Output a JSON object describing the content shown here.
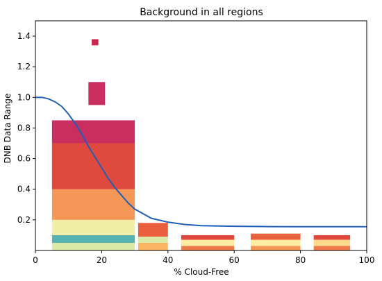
{
  "chart_data": {
    "type": "heatmap",
    "title": "Background in all regions",
    "xlabel": "% Cloud-Free",
    "ylabel": "DNB Data Range",
    "xlim": [
      0,
      100
    ],
    "ylim": [
      0,
      1.5
    ],
    "x_ticks": [
      0,
      20,
      40,
      60,
      80,
      100
    ],
    "y_ticks": [
      0.2,
      0.4,
      0.6,
      0.8,
      1.0,
      1.2,
      1.4
    ],
    "x_tick_labels": [
      "0",
      "20",
      "40",
      "60",
      "80",
      "100"
    ],
    "y_tick_labels": [
      "0.2",
      "0.4",
      "0.6",
      "0.8",
      "1.0",
      "1.2",
      "1.4"
    ],
    "grid": false,
    "colormap": [
      "#ffe6f5",
      "#c21a4e",
      "#e8553a",
      "#fbb563",
      "#fff2a8",
      "#b6e0a5",
      "#2d9fb6"
    ],
    "clusters": [
      {
        "x_range": [
          5,
          30
        ],
        "density_bins": [
          {
            "y_range": [
              0.0,
              0.05
            ],
            "level": 0.75
          },
          {
            "y_range": [
              0.05,
              0.1
            ],
            "level": 0.95
          },
          {
            "y_range": [
              0.1,
              0.2
            ],
            "level": 0.7
          },
          {
            "y_range": [
              0.2,
              0.4
            ],
            "level": 0.45
          },
          {
            "y_range": [
              0.4,
              0.7
            ],
            "level": 0.3
          },
          {
            "y_range": [
              0.7,
              0.85
            ],
            "level": 0.15
          }
        ]
      },
      {
        "x_range": [
          31,
          40
        ],
        "density_bins": [
          {
            "y_range": [
              0.0,
              0.05
            ],
            "level": 0.5
          },
          {
            "y_range": [
              0.05,
              0.09
            ],
            "level": 0.75
          },
          {
            "y_range": [
              0.09,
              0.18
            ],
            "level": 0.35
          }
        ]
      },
      {
        "x_range": [
          44,
          60
        ],
        "density_bins": [
          {
            "y_range": [
              0.0,
              0.03
            ],
            "level": 0.4
          },
          {
            "y_range": [
              0.03,
              0.07
            ],
            "level": 0.65
          },
          {
            "y_range": [
              0.07,
              0.1
            ],
            "level": 0.3
          }
        ]
      },
      {
        "x_range": [
          65,
          80
        ],
        "density_bins": [
          {
            "y_range": [
              0.0,
              0.03
            ],
            "level": 0.45
          },
          {
            "y_range": [
              0.03,
              0.07
            ],
            "level": 0.65
          },
          {
            "y_range": [
              0.07,
              0.11
            ],
            "level": 0.35
          }
        ]
      },
      {
        "x_range": [
          84,
          95
        ],
        "density_bins": [
          {
            "y_range": [
              0.0,
              0.03
            ],
            "level": 0.4
          },
          {
            "y_range": [
              0.03,
              0.07
            ],
            "level": 0.6
          },
          {
            "y_range": [
              0.07,
              0.1
            ],
            "level": 0.3
          }
        ]
      },
      {
        "x_range": [
          16,
          21
        ],
        "density_bins": [
          {
            "y_range": [
              0.95,
              1.1
            ],
            "level": 0.15
          }
        ]
      },
      {
        "x_range": [
          17,
          19
        ],
        "density_bins": [
          {
            "y_range": [
              1.34,
              1.38
            ],
            "level": 0.2
          }
        ]
      }
    ],
    "series": [
      {
        "type": "line",
        "color": "#1f5fb5",
        "x": [
          0,
          2,
          4,
          6,
          8,
          10,
          12,
          14,
          16,
          18,
          20,
          22,
          24,
          26,
          28,
          30,
          35,
          40,
          45,
          50,
          60,
          70,
          80,
          90,
          100
        ],
        "y": [
          1.0,
          1.0,
          0.99,
          0.97,
          0.94,
          0.89,
          0.83,
          0.76,
          0.68,
          0.61,
          0.54,
          0.47,
          0.41,
          0.36,
          0.31,
          0.27,
          0.21,
          0.185,
          0.17,
          0.162,
          0.158,
          0.156,
          0.155,
          0.155,
          0.155
        ]
      }
    ]
  }
}
